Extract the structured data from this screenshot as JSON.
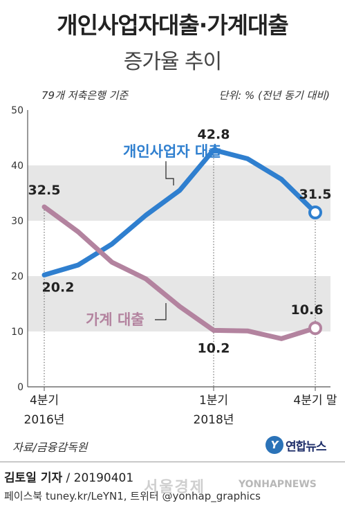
{
  "header": {
    "title": "개인사업자대출·가계대출",
    "subtitle": "증가율 추이",
    "note_left": "79개 저축은행 기준",
    "note_right": "단위: % (전년 동기 대비)"
  },
  "chart_data": {
    "type": "line",
    "title": "개인사업자대출·가계대출",
    "subtitle": "증가율 추이",
    "ylim": [
      0,
      50
    ],
    "yticks": [
      0,
      10,
      20,
      30,
      40,
      50
    ],
    "x": [
      0,
      1,
      2,
      3,
      4,
      5,
      6,
      7,
      8
    ],
    "x_labels": [
      {
        "x": 0,
        "line1": "4분기",
        "line2": "2016년"
      },
      {
        "x": 5,
        "line1": "1분기",
        "line2": "2018년"
      },
      {
        "x": 8,
        "line1": "4분기 말",
        "line2": ""
      }
    ],
    "series": [
      {
        "name": "개인사업자 대출",
        "color": "#2f7fcf",
        "values": [
          20.2,
          22.0,
          25.8,
          31.0,
          35.5,
          42.8,
          41.2,
          37.5,
          31.5
        ],
        "labels": [
          {
            "index": 0,
            "text": "20.2"
          },
          {
            "index": 5,
            "text": "42.8"
          },
          {
            "index": 8,
            "text": "31.5"
          }
        ]
      },
      {
        "name": "가계 대출",
        "color": "#b3839f",
        "values": [
          32.5,
          28.0,
          22.5,
          19.5,
          14.5,
          10.2,
          10.1,
          8.7,
          10.6
        ],
        "labels": [
          {
            "index": 0,
            "text": "32.5"
          },
          {
            "index": 5,
            "text": "10.2"
          },
          {
            "index": 8,
            "text": "10.6"
          }
        ]
      }
    ]
  },
  "footer": {
    "source": "자료/금융감독원",
    "logo_mark": "Y",
    "logo_text": "연합뉴스",
    "reporter": "김토일 기자",
    "date": "/ 20190401",
    "social": "페이스북 tuney.kr/LeYN1, 트위터 @yonhap_graphics",
    "watermark_1": "서울경제",
    "watermark_2": "YONHAPNEWS"
  }
}
